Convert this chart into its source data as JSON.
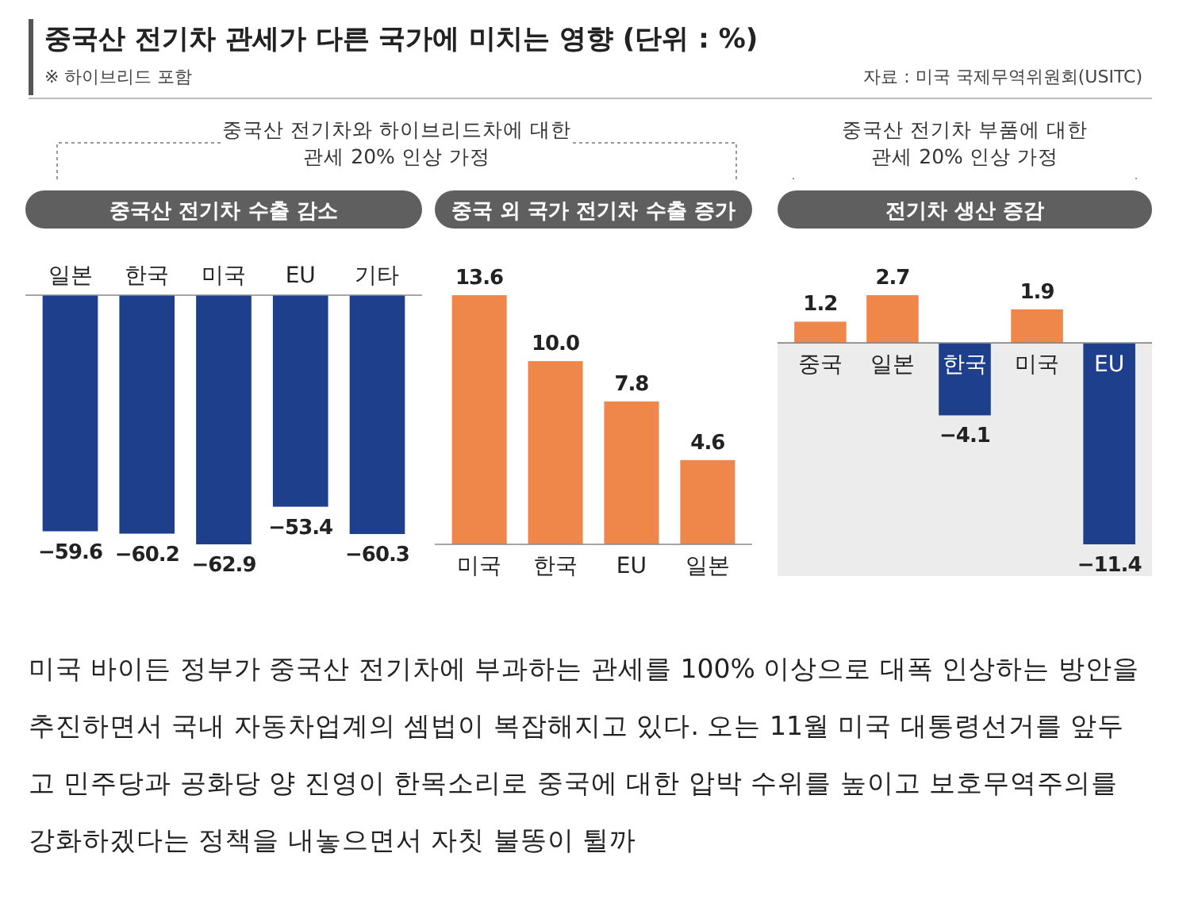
{
  "chart_data": [
    {
      "type": "bar",
      "title": "중국산 전기차 수출 감소",
      "categories": [
        "일본",
        "한국",
        "미국",
        "EU",
        "기타"
      ],
      "values": [
        -59.6,
        -60.2,
        -62.9,
        -53.4,
        -60.3
      ],
      "color": "#1d3f8c",
      "data_labels": true,
      "annotations": [
        "중국산 전기차 관세가 다른 국가에 미치는 영향 (단위 : %)",
        "※ 하이브리드 포함",
        "자료 : 미국 국제무역위원회(USITC)",
        "중국산 전기차와 하이브리드차에 대한\n관세 20% 인상 가정",
        "미국 바이든 정부가 중국산 전기차에 부과하는 관세를 100% 이상으로 대폭 인상하는 방안을 추진하면서 국내 자동차업계의 셈법이 복잡해지고 있다. 오는 11월 미국 대통령선거를 앞두고 민주당과 공화당 양 진영이 한목소리로 중국에 대한 압박 수위를 높이고 보호무역주의를 강화하겠다는 정책을 내놓으면서 자칫 불똥이 튈까"
      ]
    },
    {
      "type": "bar",
      "title": "중국 외 국가 전기차 수출 증가",
      "categories": [
        "미국",
        "한국",
        "EU",
        "일본"
      ],
      "values": [
        13.6,
        10.0,
        7.8,
        4.6
      ],
      "value_labels": [
        "13.6",
        "10.0",
        "7.8",
        "4.6"
      ],
      "color": "#f0874a"
    },
    {
      "type": "bar",
      "title": "전기차 생산 증감",
      "categories": [
        "중국",
        "일본",
        "한국",
        "미국",
        "EU"
      ],
      "values": [
        1.2,
        2.7,
        -4.1,
        1.9,
        -11.4
      ],
      "colors": [
        "#f0874a",
        "#f0874a",
        "#1d3f8c",
        "#f0874a",
        "#1d3f8c"
      ],
      "data_labels": true,
      "annotations": [
        "중국산 전기차 부품에 대한\n관세 20% 인상 가정"
      ]
    }
  ]
}
